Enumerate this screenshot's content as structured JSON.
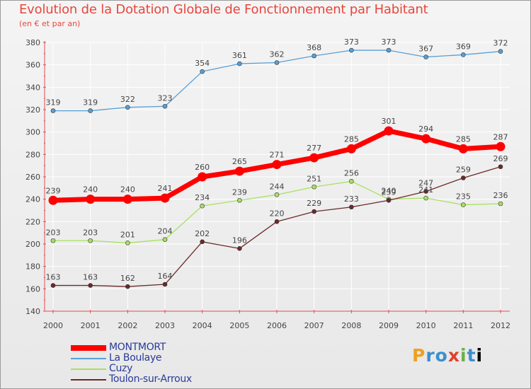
{
  "title": "Evolution de la Dotation Globale de Fonctionnement par Habitant",
  "subtitle": "(en € et par an)",
  "logo_text": "Proxiti",
  "chart_data": {
    "type": "line",
    "title": "Evolution de la Dotation Globale de Fonctionnement par Habitant",
    "subtitle": "(en € et par an)",
    "xlabel": "",
    "ylabel": "",
    "x": [
      "2000",
      "2001",
      "2002",
      "2003",
      "2004",
      "2005",
      "2006",
      "2007",
      "2008",
      "2009",
      "2010",
      "2011",
      "2012"
    ],
    "ylim": [
      140,
      380
    ],
    "yticks": [
      140,
      160,
      180,
      200,
      220,
      240,
      260,
      280,
      300,
      320,
      340,
      360,
      380
    ],
    "grid": true,
    "legend_position": "bottom-left",
    "series": [
      {
        "name": "MONTMORT",
        "color": "#ff0000",
        "emphasis": true,
        "values": [
          239,
          240,
          240,
          241,
          260,
          265,
          271,
          277,
          285,
          301,
          294,
          285,
          287
        ]
      },
      {
        "name": "La Boulaye",
        "color": "#5a9fd4",
        "emphasis": false,
        "values": [
          319,
          319,
          322,
          323,
          354,
          361,
          362,
          368,
          373,
          373,
          367,
          369,
          372
        ]
      },
      {
        "name": "Cuzy",
        "color": "#a8e060",
        "emphasis": false,
        "values": [
          203,
          203,
          201,
          204,
          234,
          239,
          244,
          251,
          256,
          240,
          241,
          235,
          236
        ]
      },
      {
        "name": "Toulon-sur-Arroux",
        "color": "#6a2a28",
        "emphasis": false,
        "values": [
          163,
          163,
          162,
          164,
          202,
          196,
          220,
          229,
          233,
          239,
          247,
          259,
          269
        ]
      }
    ]
  }
}
